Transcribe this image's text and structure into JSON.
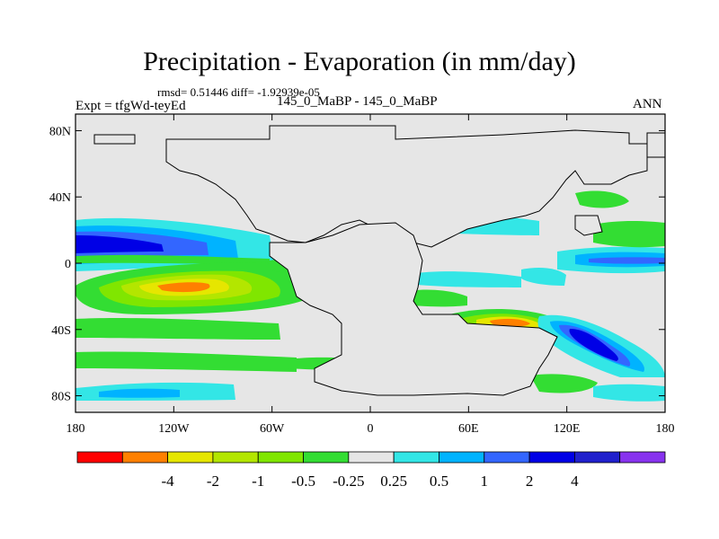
{
  "title": "Precipitation - Evaporation (in mm/day)",
  "stats_line": "rmsd= 0.51446 diff= -1.92939e-05",
  "experiment_line": "Expt = tfgWd-teyEd",
  "difference_line": "145_0_MaBP - 145_0_MaBP",
  "season": "ANN",
  "y_ticks": [
    {
      "lat": 80,
      "label": "80N"
    },
    {
      "lat": 40,
      "label": "40N"
    },
    {
      "lat": 0,
      "label": "0"
    },
    {
      "lat": -40,
      "label": "40S"
    },
    {
      "lat": -80,
      "label": "80S"
    }
  ],
  "x_ticks": [
    {
      "lon": -180,
      "label": "180"
    },
    {
      "lon": -120,
      "label": "120W"
    },
    {
      "lon": -60,
      "label": "60W"
    },
    {
      "lon": 0,
      "label": "0"
    },
    {
      "lon": 60,
      "label": "60E"
    },
    {
      "lon": 120,
      "label": "120E"
    },
    {
      "lon": 180,
      "label": "180"
    }
  ],
  "colorbar": {
    "colors": [
      "#ff0000",
      "#ff8000",
      "#e6e600",
      "#b3e600",
      "#80e600",
      "#33dd33",
      "#e6e6e6",
      "#33e6e6",
      "#00b3ff",
      "#3366ff",
      "#0000e6",
      "#2020cc",
      "#8833ee"
    ],
    "labels": [
      "-4",
      "-2",
      "-1",
      "-0.5",
      "-0.25",
      "0.25",
      "0.5",
      "1",
      "2",
      "4"
    ]
  },
  "colors": {
    "land": "#e6e6e6",
    "ocean_background": "#e6e6e6",
    "coastline": "#000000"
  }
}
